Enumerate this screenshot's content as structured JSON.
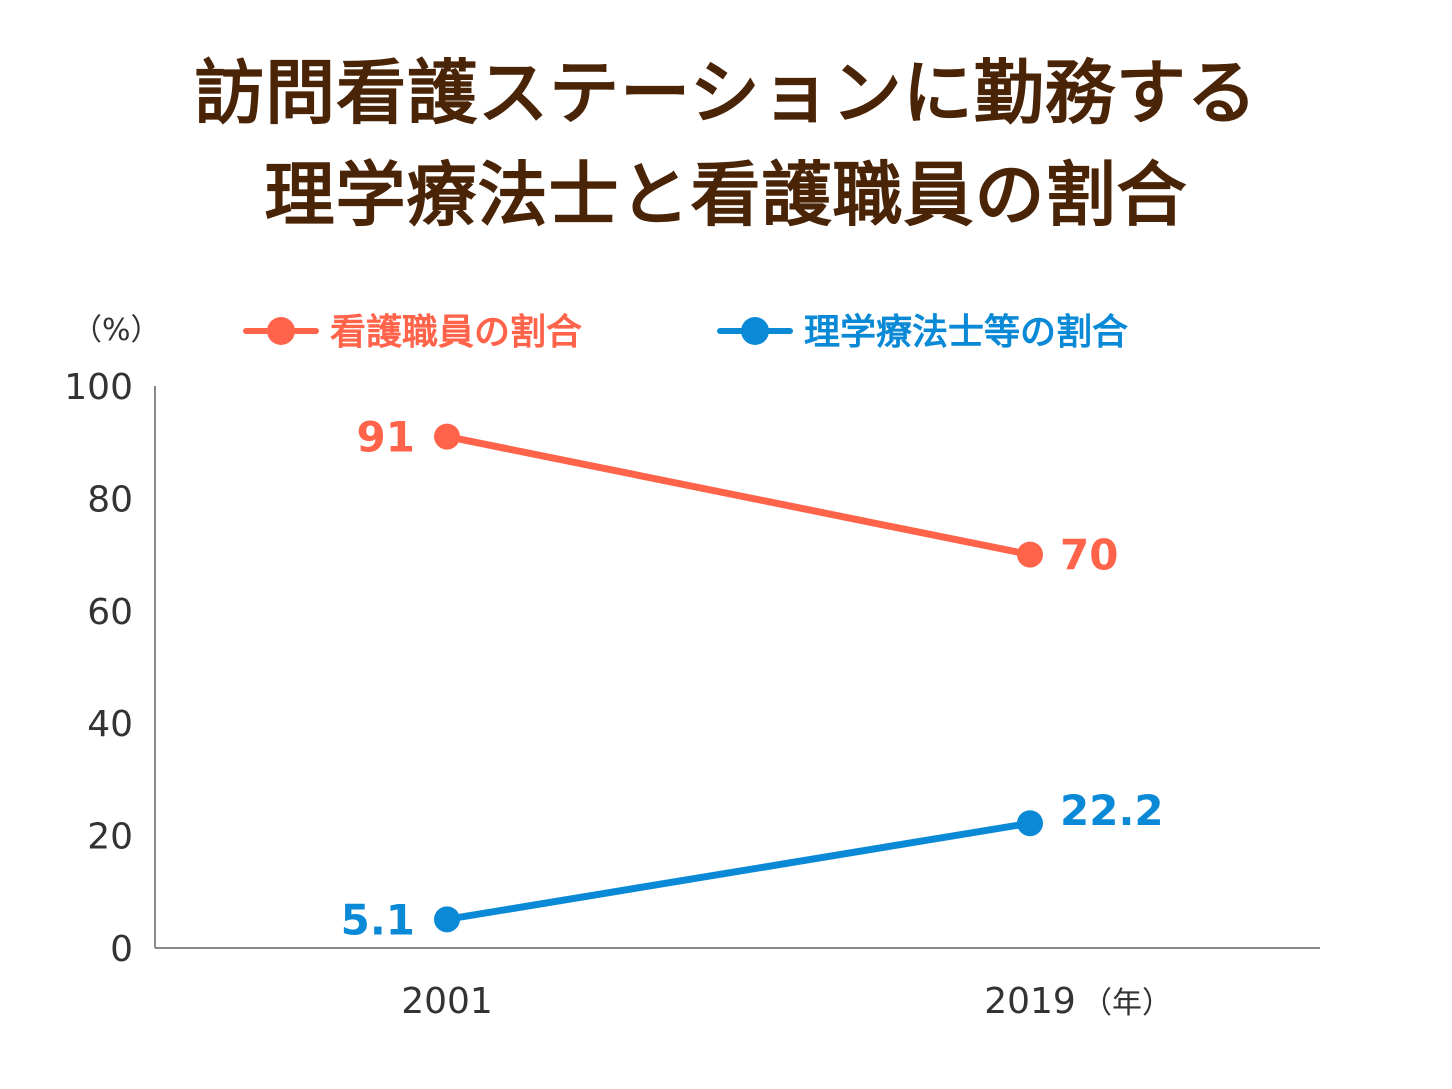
{
  "title_lines": [
    "訪問看護ステーションに勤務する",
    "理学療法士と看護職員の割合"
  ],
  "chart_data": {
    "type": "line",
    "title": "訪問看護ステーションに勤務する理学療法士と看護職員の割合",
    "x": [
      "2001",
      "2019"
    ],
    "x_unit": "（年）",
    "y_unit": "（%）",
    "ylim": [
      0,
      100
    ],
    "yticks": [
      0,
      20,
      40,
      60,
      80,
      100
    ],
    "grid": false,
    "legend_position": "top",
    "series": [
      {
        "name": "看護職員の割合",
        "values": [
          91,
          70
        ],
        "labels": [
          "91",
          "70"
        ],
        "color": "#ff634a"
      },
      {
        "name": "理学療法士等の割合",
        "values": [
          5.1,
          22.2
        ],
        "labels": [
          "5.1",
          "22.2"
        ],
        "color": "#0a8ad6"
      }
    ]
  },
  "colors": {
    "title": "#4a2407",
    "axis": "#888888",
    "text": "#333333"
  }
}
